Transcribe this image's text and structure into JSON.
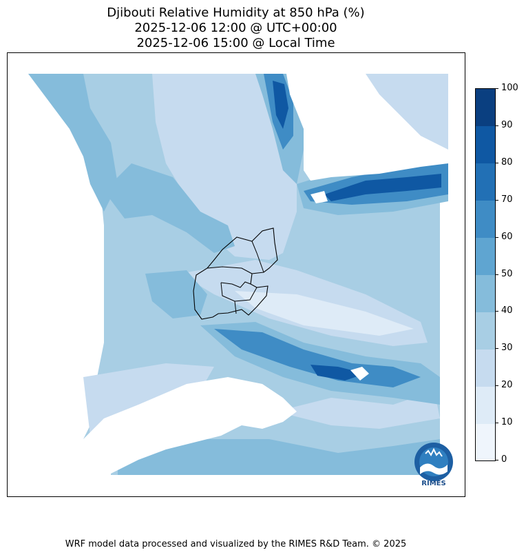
{
  "title": {
    "line1": "Djibouti Relative Humidity at 850 hPa (%)",
    "line2": "2025-12-06 12:00 @ UTC+00:00",
    "line3": "2025-12-06 15:00 @ Local Time"
  },
  "colorbar": {
    "ticks": [
      "0",
      "10",
      "20",
      "30",
      "40",
      "50",
      "60",
      "70",
      "80",
      "90",
      "100"
    ],
    "colors": [
      "#eff5fc",
      "#deebf7",
      "#c6dbef",
      "#a8cee4",
      "#85bcdb",
      "#5fa5d1",
      "#3f8cc5",
      "#2270b5",
      "#0f58a3",
      "#0a3f80"
    ]
  },
  "logo": {
    "text": "RIMES"
  },
  "footer": "WRF model data processed and visualized by the RIMES R&D Team. © 2025"
}
